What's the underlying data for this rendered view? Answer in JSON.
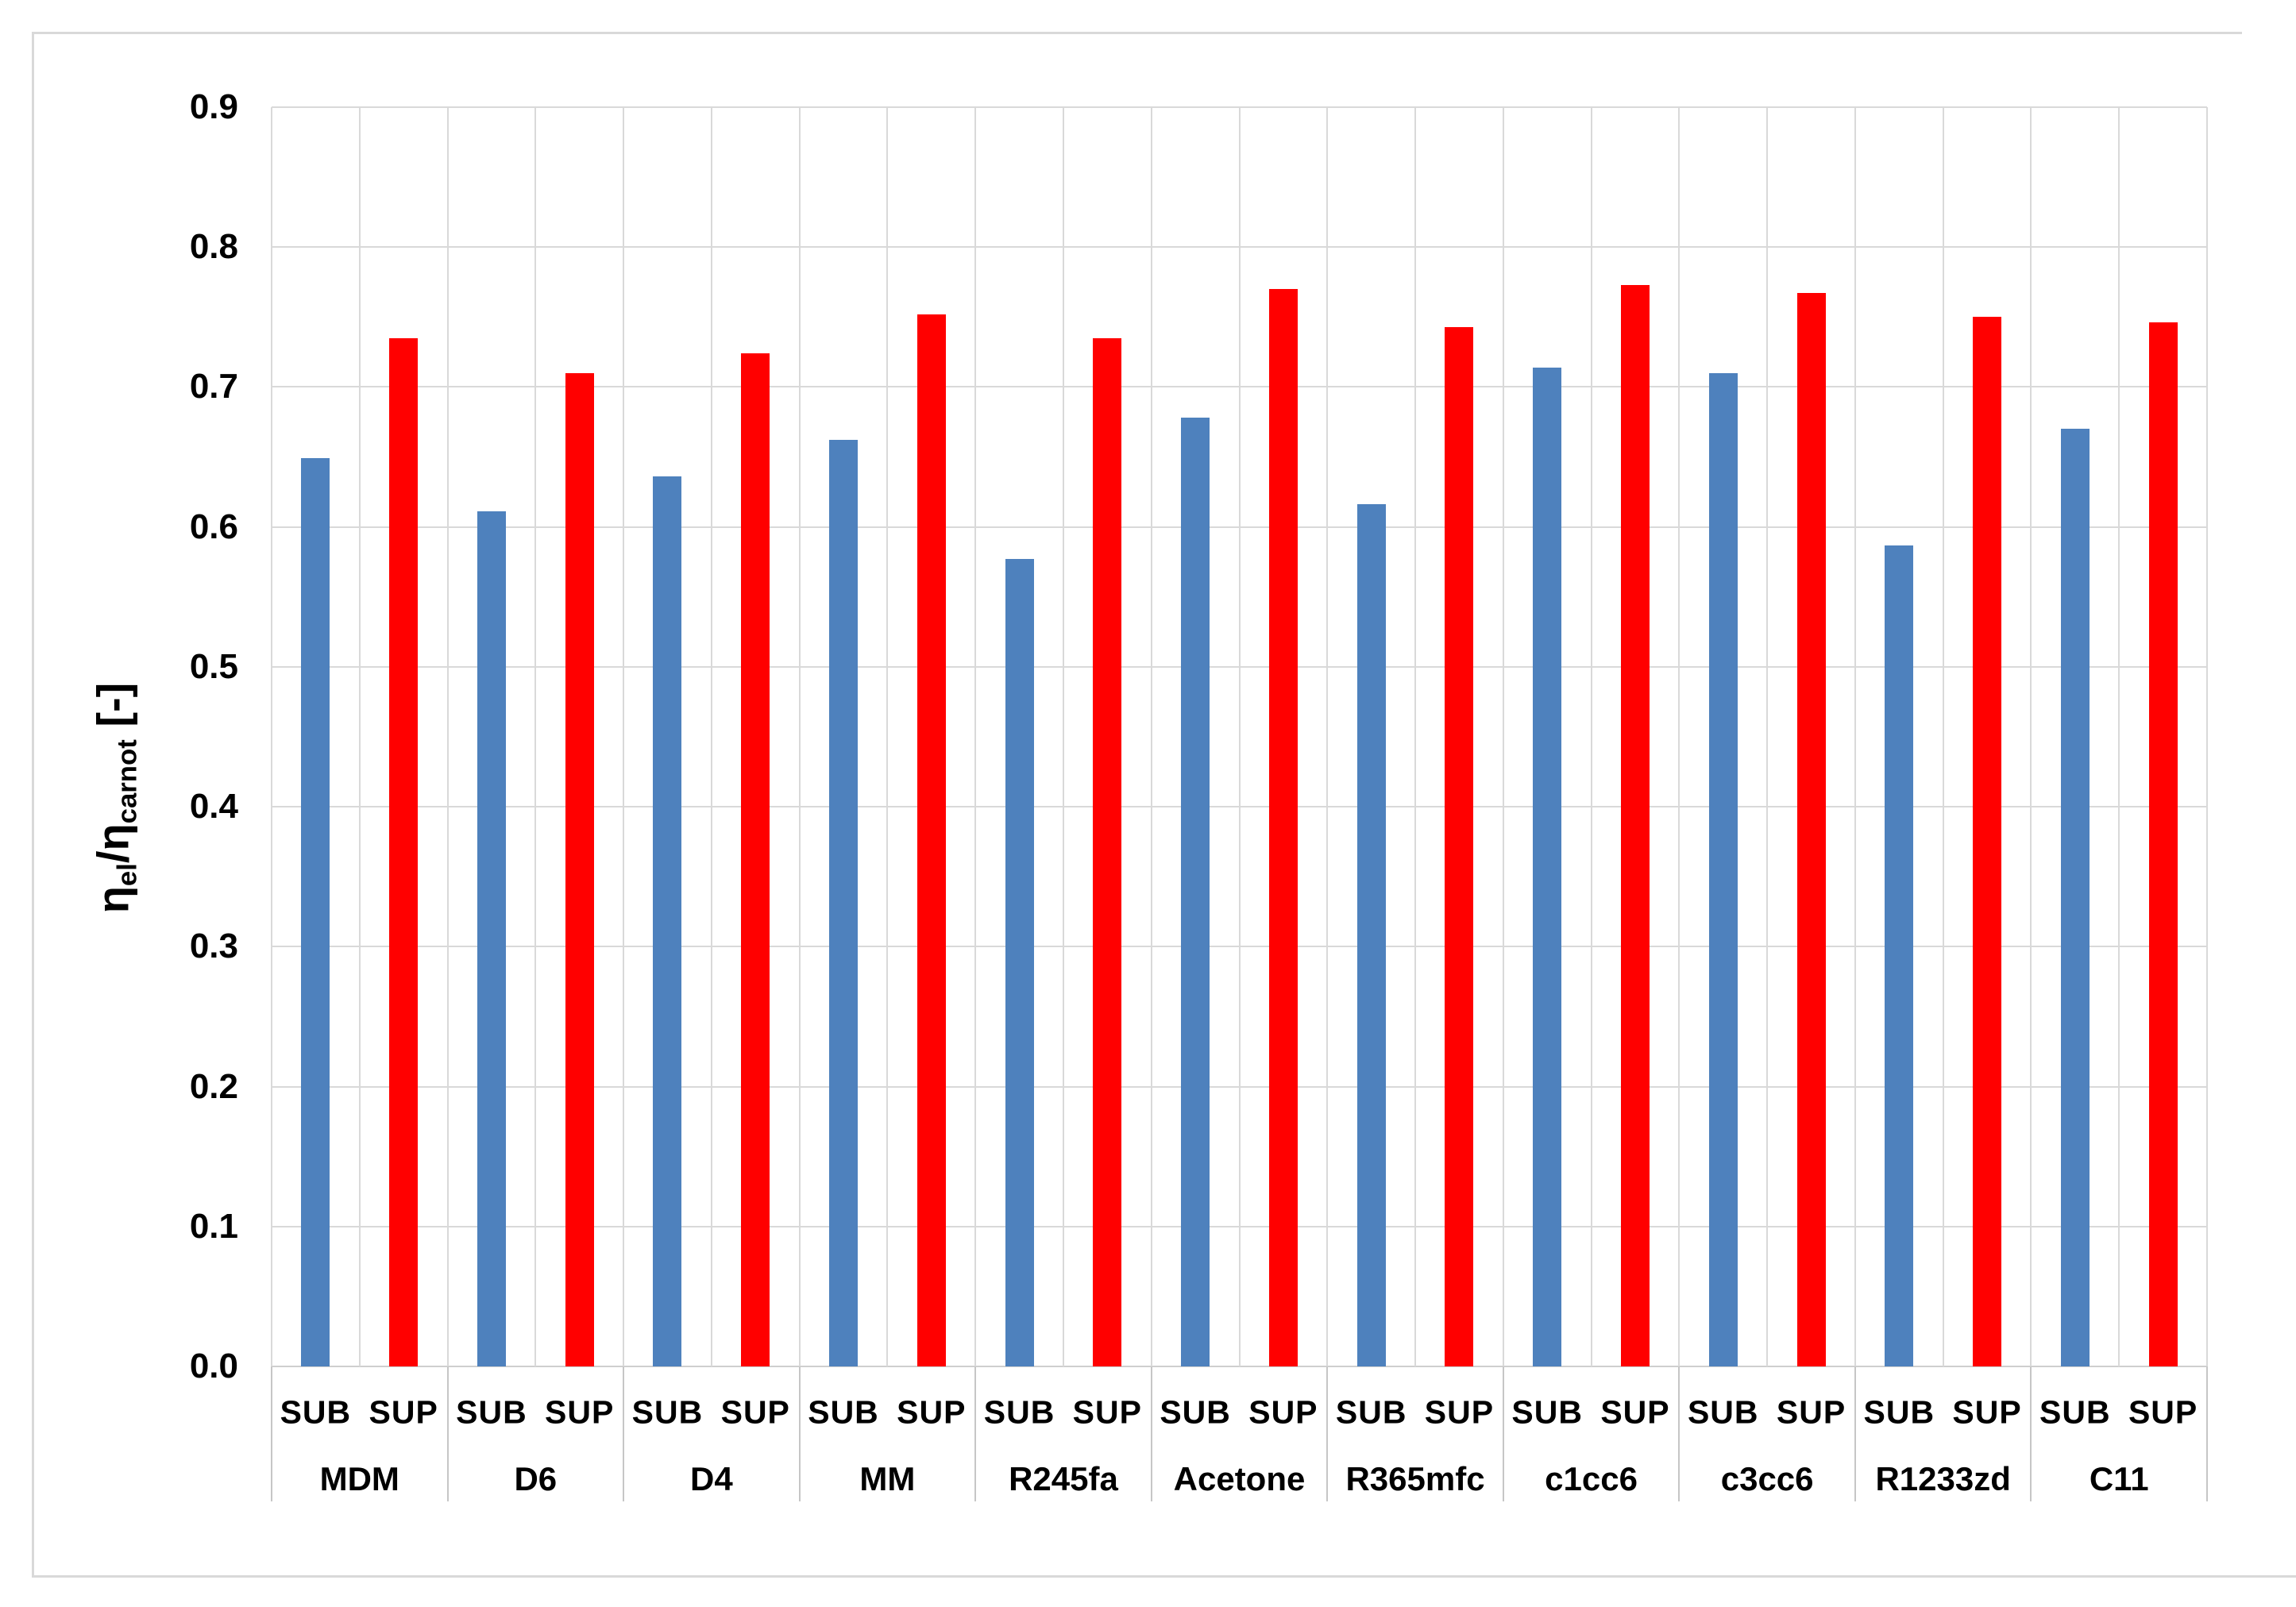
{
  "chart_data": {
    "type": "bar",
    "title": "",
    "ylabel_plain": "η_el/η_carnot [-]",
    "ylabel_parts": [
      {
        "text": "η",
        "sub": false
      },
      {
        "text": "el",
        "sub": true
      },
      {
        "text": "/",
        "sub": false
      },
      {
        "text": "η",
        "sub": false
      },
      {
        "text": "carnot",
        "sub": true
      },
      {
        "text": " [-]",
        "sub": false
      }
    ],
    "ylim": [
      0.0,
      0.9
    ],
    "ytick_step": 0.1,
    "ytick_decimals": 1,
    "ytick_labels": [
      "0.0",
      "0.1",
      "0.2",
      "0.3",
      "0.4",
      "0.5",
      "0.6",
      "0.7",
      "0.8",
      "0.9"
    ],
    "grid": true,
    "legend_position": "none",
    "categories": [
      "MDM",
      "D6",
      "D4",
      "MM",
      "R245fa",
      "Acetone",
      "R365mfc",
      "c1cc6",
      "c3cc6",
      "R1233zd",
      "C11"
    ],
    "series": [
      {
        "name": "SUB",
        "color": "#4E81BD",
        "values": [
          0.649,
          0.611,
          0.636,
          0.662,
          0.577,
          0.678,
          0.616,
          0.714,
          0.71,
          0.587,
          0.67
        ]
      },
      {
        "name": "SUP",
        "color": "#FF0000",
        "values": [
          0.735,
          0.71,
          0.724,
          0.752,
          0.735,
          0.77,
          0.743,
          0.773,
          0.767,
          0.75,
          0.746
        ]
      }
    ]
  },
  "colors": {
    "background": "#FFFFFF",
    "gridline": "#D9D9D9",
    "axis_line": "#CFCFCF",
    "group_separator": "#C6C6C6",
    "figure_border": "#D9D9D9",
    "text": "#000000"
  }
}
